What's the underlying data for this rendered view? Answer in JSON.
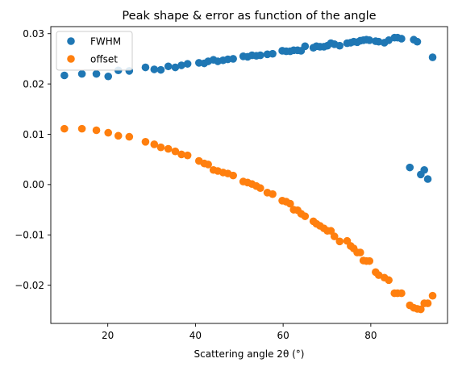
{
  "chart_data": {
    "type": "scatter",
    "title": "Peak shape & error as function of the angle",
    "xlabel": "Scattering angle 2θ (°)",
    "ylabel": "",
    "xlim": [
      7,
      97.5
    ],
    "ylim": [
      -0.0276,
      0.0314
    ],
    "x_ticks": [
      20,
      40,
      60,
      80
    ],
    "x_tick_labels": [
      "20",
      "40",
      "60",
      "80"
    ],
    "y_ticks": [
      -0.02,
      -0.01,
      0.0,
      0.01,
      0.02,
      0.03
    ],
    "y_tick_labels": [
      "−0.02",
      "−0.01",
      "0.00",
      "0.01",
      "0.02",
      "0.03"
    ],
    "grid": false,
    "legend_position": "top-left",
    "series": [
      {
        "name": "FWHM",
        "color": "#1f77b4",
        "points": [
          [
            10.1,
            0.0217
          ],
          [
            14.1,
            0.022
          ],
          [
            17.4,
            0.022
          ],
          [
            20.1,
            0.0215
          ],
          [
            22.4,
            0.0227
          ],
          [
            24.9,
            0.0226
          ],
          [
            28.6,
            0.0233
          ],
          [
            30.6,
            0.0229
          ],
          [
            32.1,
            0.0228
          ],
          [
            33.8,
            0.0235
          ],
          [
            35.4,
            0.0233
          ],
          [
            36.8,
            0.0237
          ],
          [
            38.2,
            0.024
          ],
          [
            40.8,
            0.0242
          ],
          [
            42.0,
            0.0241
          ],
          [
            42.9,
            0.0245
          ],
          [
            44.1,
            0.0248
          ],
          [
            45.1,
            0.0245
          ],
          [
            46.3,
            0.0247
          ],
          [
            47.4,
            0.0249
          ],
          [
            48.6,
            0.025
          ],
          [
            50.9,
            0.0255
          ],
          [
            51.9,
            0.0254
          ],
          [
            52.9,
            0.0257
          ],
          [
            53.9,
            0.0256
          ],
          [
            54.8,
            0.0257
          ],
          [
            56.4,
            0.0259
          ],
          [
            57.6,
            0.026
          ],
          [
            59.8,
            0.0266
          ],
          [
            60.7,
            0.0265
          ],
          [
            61.6,
            0.0265
          ],
          [
            62.4,
            0.0267
          ],
          [
            63.3,
            0.0267
          ],
          [
            64.1,
            0.0266
          ],
          [
            65.0,
            0.0275
          ],
          [
            66.9,
            0.0272
          ],
          [
            67.6,
            0.0275
          ],
          [
            68.4,
            0.0274
          ],
          [
            69.3,
            0.0274
          ],
          [
            70.1,
            0.0276
          ],
          [
            70.9,
            0.0281
          ],
          [
            71.7,
            0.0279
          ],
          [
            72.9,
            0.0276
          ],
          [
            74.6,
            0.0281
          ],
          [
            75.4,
            0.0282
          ],
          [
            76.1,
            0.0284
          ],
          [
            76.9,
            0.0283
          ],
          [
            77.6,
            0.0286
          ],
          [
            78.3,
            0.0287
          ],
          [
            79.0,
            0.0288
          ],
          [
            79.7,
            0.0287
          ],
          [
            81.1,
            0.0285
          ],
          [
            81.8,
            0.0284
          ],
          [
            83.1,
            0.0282
          ],
          [
            84.1,
            0.0287
          ],
          [
            85.4,
            0.0292
          ],
          [
            86.1,
            0.0292
          ],
          [
            87.0,
            0.029
          ],
          [
            88.9,
            0.0034
          ],
          [
            89.8,
            0.0288
          ],
          [
            90.6,
            0.0284
          ],
          [
            91.4,
            0.002
          ],
          [
            92.2,
            0.0029
          ],
          [
            93.0,
            0.0011
          ],
          [
            94.1,
            0.0253
          ]
        ]
      },
      {
        "name": "offset",
        "color": "#ff7f0e",
        "points": [
          [
            10.1,
            0.0111
          ],
          [
            14.1,
            0.0111
          ],
          [
            17.4,
            0.0108
          ],
          [
            20.1,
            0.0103
          ],
          [
            22.4,
            0.0097
          ],
          [
            24.9,
            0.0095
          ],
          [
            28.6,
            0.0085
          ],
          [
            30.6,
            0.008
          ],
          [
            32.1,
            0.0074
          ],
          [
            33.8,
            0.0071
          ],
          [
            35.4,
            0.0066
          ],
          [
            36.8,
            0.006
          ],
          [
            38.2,
            0.0058
          ],
          [
            40.8,
            0.0047
          ],
          [
            42.0,
            0.0042
          ],
          [
            42.9,
            0.004
          ],
          [
            44.1,
            0.0029
          ],
          [
            45.1,
            0.0027
          ],
          [
            46.3,
            0.0024
          ],
          [
            47.4,
            0.0022
          ],
          [
            48.6,
            0.0018
          ],
          [
            50.9,
            0.0006
          ],
          [
            51.9,
            0.0004
          ],
          [
            52.9,
            0.0001
          ],
          [
            53.9,
            -0.0003
          ],
          [
            54.8,
            -0.0007
          ],
          [
            56.4,
            -0.0016
          ],
          [
            57.6,
            -0.0019
          ],
          [
            59.8,
            -0.0032
          ],
          [
            60.7,
            -0.0034
          ],
          [
            61.6,
            -0.0038
          ],
          [
            62.4,
            -0.005
          ],
          [
            63.3,
            -0.0051
          ],
          [
            64.1,
            -0.0058
          ],
          [
            65.0,
            -0.0063
          ],
          [
            66.9,
            -0.0073
          ],
          [
            67.6,
            -0.0078
          ],
          [
            68.4,
            -0.0082
          ],
          [
            69.3,
            -0.0087
          ],
          [
            70.1,
            -0.0092
          ],
          [
            70.9,
            -0.0092
          ],
          [
            71.7,
            -0.0103
          ],
          [
            72.9,
            -0.0113
          ],
          [
            74.6,
            -0.0112
          ],
          [
            75.4,
            -0.0122
          ],
          [
            76.1,
            -0.0127
          ],
          [
            76.9,
            -0.0135
          ],
          [
            77.6,
            -0.0135
          ],
          [
            78.3,
            -0.0151
          ],
          [
            79.0,
            -0.0152
          ],
          [
            79.7,
            -0.0152
          ],
          [
            81.1,
            -0.0174
          ],
          [
            81.8,
            -0.018
          ],
          [
            83.1,
            -0.0185
          ],
          [
            84.1,
            -0.019
          ],
          [
            85.4,
            -0.0216
          ],
          [
            86.1,
            -0.0216
          ],
          [
            87.0,
            -0.0216
          ],
          [
            88.9,
            -0.024
          ],
          [
            89.8,
            -0.0245
          ],
          [
            90.6,
            -0.0247
          ],
          [
            91.4,
            -0.0248
          ],
          [
            92.2,
            -0.0236
          ],
          [
            93.0,
            -0.0236
          ],
          [
            94.1,
            -0.0221
          ]
        ]
      }
    ]
  }
}
